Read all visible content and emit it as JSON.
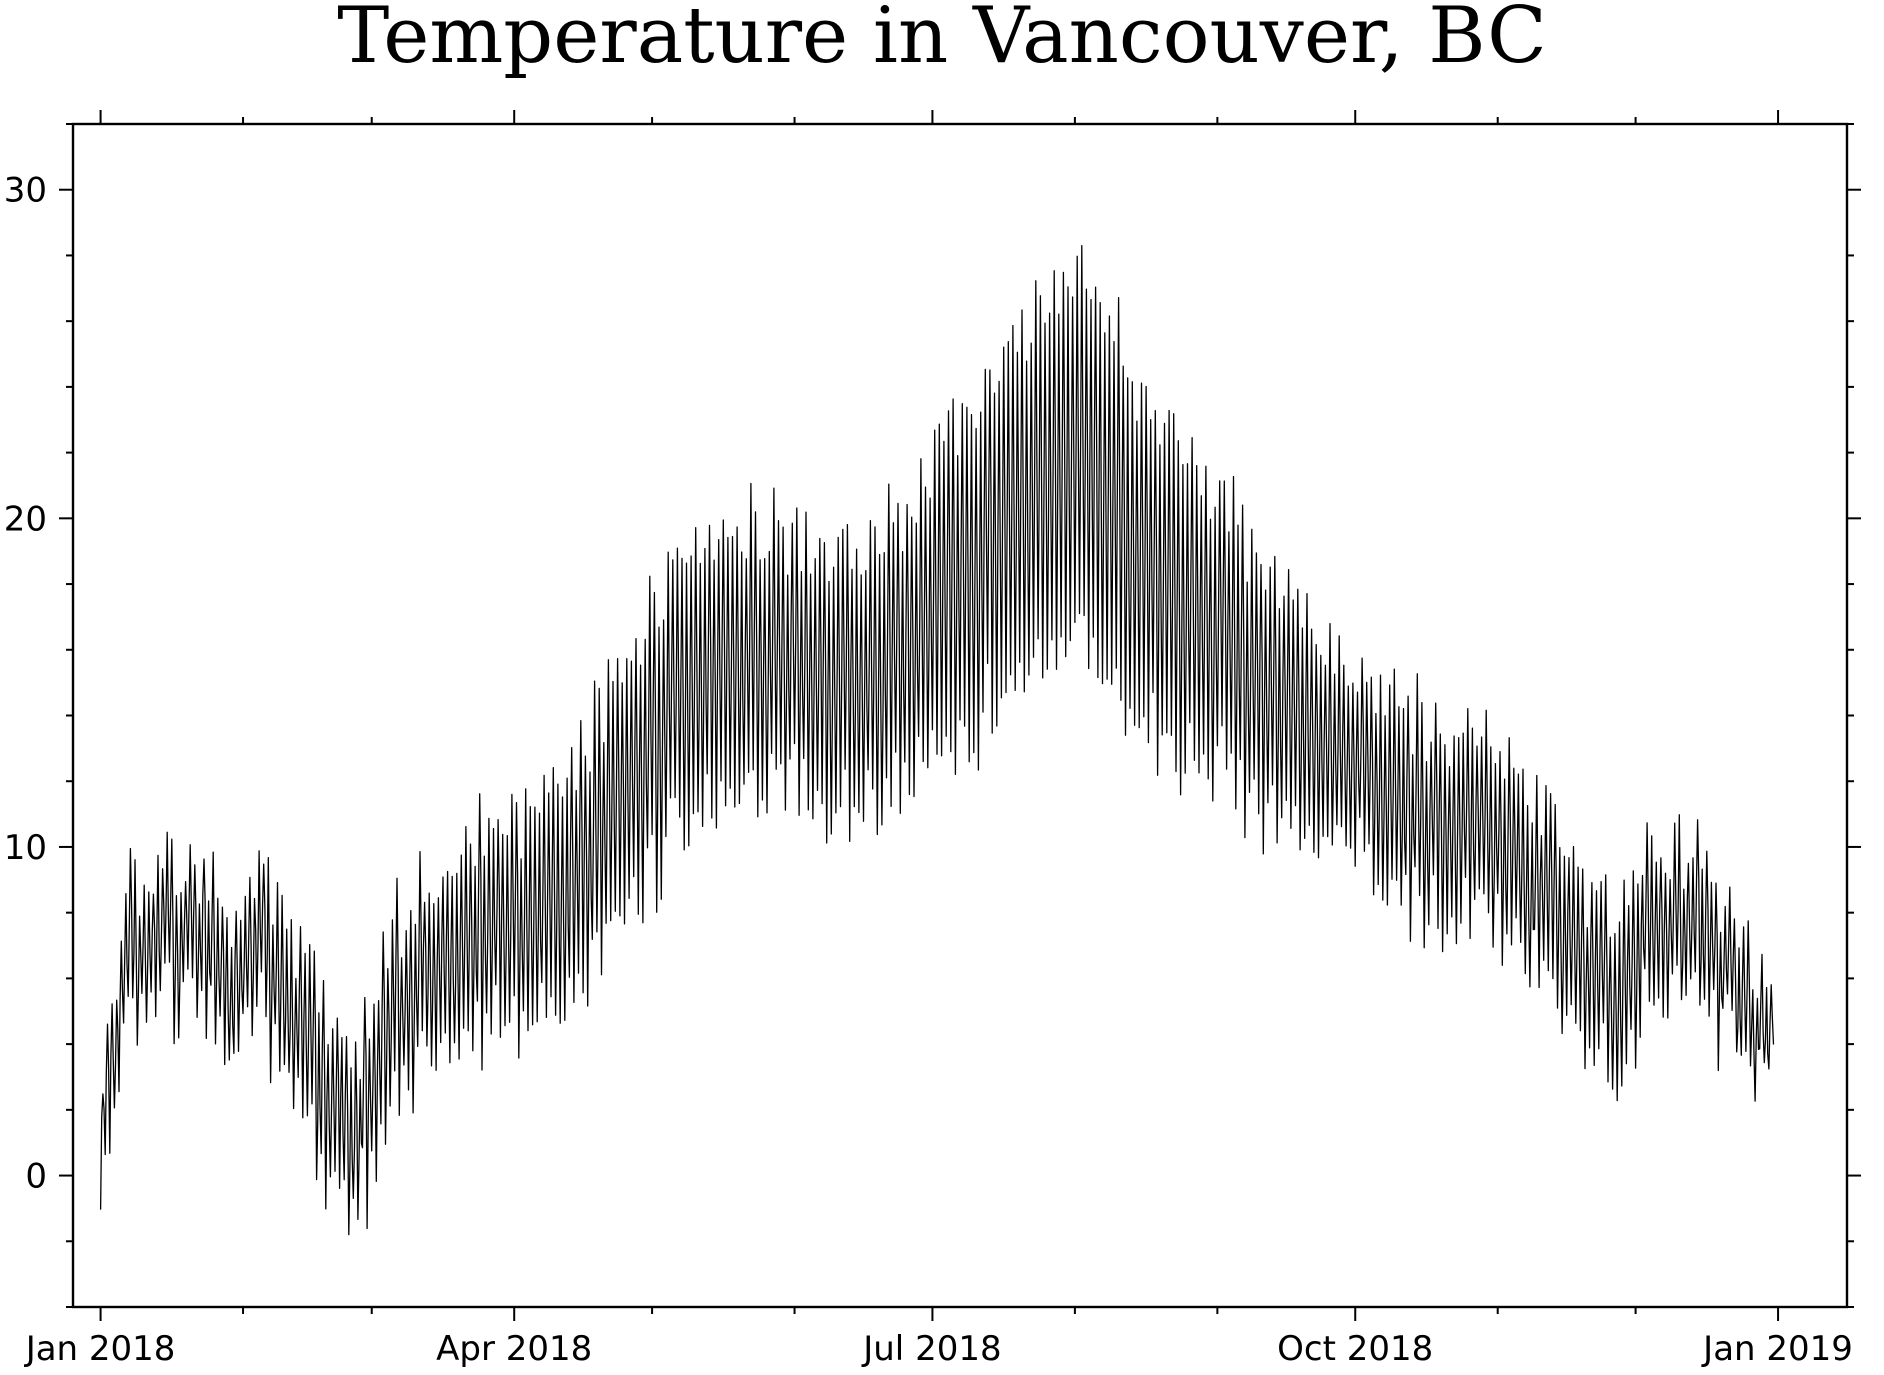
{
  "chart_data": {
    "type": "line",
    "title": "Temperature in Vancouver, BC",
    "xlabel": "",
    "ylabel": "",
    "x_axis": {
      "type": "time",
      "range": [
        "2017-12-26",
        "2019-01-16"
      ],
      "major_ticks": [
        "2018-01-01",
        "2018-04-01",
        "2018-07-01",
        "2018-10-01",
        "2019-01-01"
      ],
      "major_tick_labels": [
        "Jan 2018",
        "Apr 2018",
        "Jul 2018",
        "Oct 2018",
        "Jan 2019"
      ],
      "minor_ticks": [
        "2018-02-01",
        "2018-03-01",
        "2018-05-01",
        "2018-06-01",
        "2018-08-01",
        "2018-09-01",
        "2018-11-01",
        "2018-12-01"
      ]
    },
    "y_axis": {
      "range": [
        -4,
        32
      ],
      "major_ticks": [
        0,
        10,
        20,
        30
      ],
      "tick_labels": [
        "0",
        "10",
        "20",
        "30"
      ],
      "minor_tick_step": 2
    },
    "grid": false,
    "series": [
      {
        "color": "#000000",
        "points_per_day": 4,
        "x": [
          "2018-01-01",
          "2018-01-06",
          "2018-01-12",
          "2018-01-20",
          "2018-01-30",
          "2018-02-05",
          "2018-02-12",
          "2018-02-18",
          "2018-02-25",
          "2018-03-05",
          "2018-03-15",
          "2018-03-25",
          "2018-04-01",
          "2018-04-10",
          "2018-04-20",
          "2018-05-01",
          "2018-05-10",
          "2018-05-20",
          "2018-06-01",
          "2018-06-10",
          "2018-06-20",
          "2018-07-01",
          "2018-07-10",
          "2018-07-20",
          "2018-07-28",
          "2018-08-05",
          "2018-08-15",
          "2018-08-25",
          "2018-09-05",
          "2018-09-15",
          "2018-09-25",
          "2018-10-01",
          "2018-10-10",
          "2018-10-20",
          "2018-11-01",
          "2018-11-10",
          "2018-11-20",
          "2018-11-28",
          "2018-12-05",
          "2018-12-15",
          "2018-12-25",
          "2018-12-31"
        ],
        "mean": [
          2,
          6.5,
          7,
          7.5,
          6,
          7,
          5,
          3,
          1,
          5,
          6.5,
          7.5,
          8,
          8.5,
          10.5,
          13,
          15.5,
          16,
          15.5,
          15,
          15.5,
          17,
          18.5,
          20,
          21.5,
          21.5,
          19,
          17.5,
          16,
          14.5,
          13,
          12.5,
          11.5,
          10.5,
          10.5,
          8.5,
          6.5,
          5,
          7.5,
          7.5,
          5,
          4
        ],
        "amplitude": [
          1.5,
          2,
          2,
          2,
          2,
          2,
          2.5,
          2.5,
          2.5,
          2.5,
          2.5,
          3,
          3,
          3.5,
          3.5,
          4,
          4,
          4,
          3.5,
          4,
          4,
          4.5,
          5,
          5,
          5.5,
          5.5,
          5,
          4.5,
          4,
          3.5,
          3,
          2.5,
          3,
          3,
          2.5,
          2.5,
          2.5,
          2.5,
          2,
          2,
          1.5,
          1.5
        ],
        "min": -3.8,
        "max": 30.5
      }
    ]
  }
}
